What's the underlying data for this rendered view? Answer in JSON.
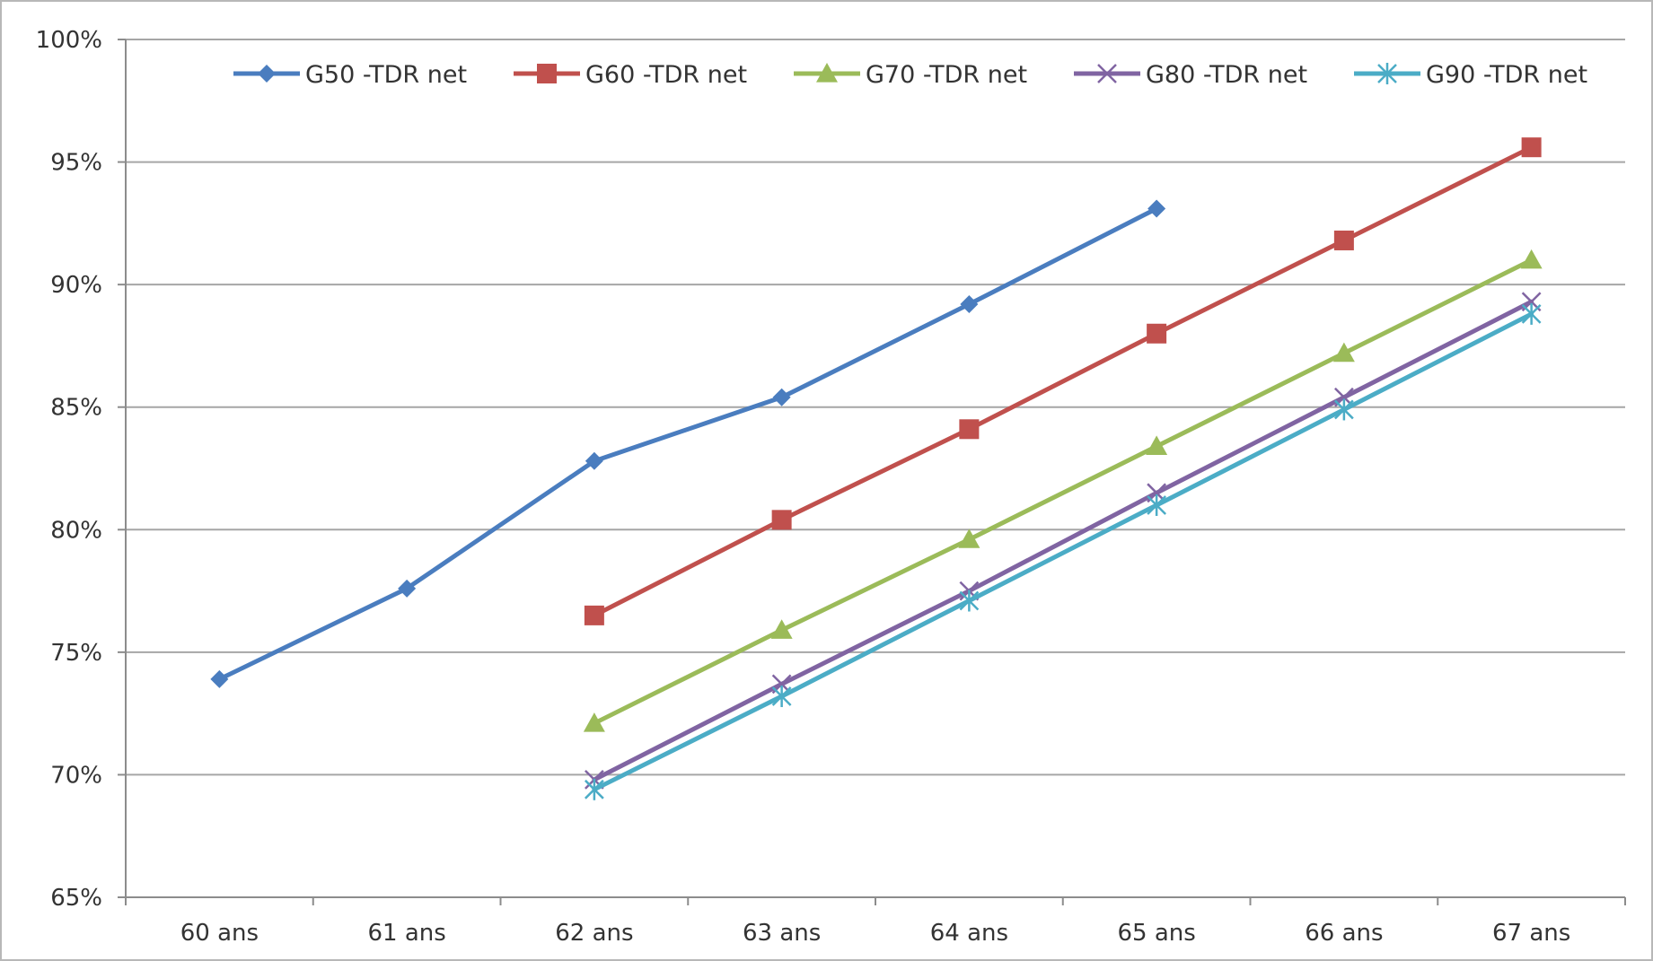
{
  "chart_data": {
    "type": "line",
    "categories": [
      "60 ans",
      "61 ans",
      "62 ans",
      "63 ans",
      "64 ans",
      "65 ans",
      "66 ans",
      "67 ans"
    ],
    "y_ticks": [
      "65%",
      "70%",
      "75%",
      "80%",
      "85%",
      "90%",
      "95%",
      "100%"
    ],
    "ylim": [
      65,
      100
    ],
    "grid": true,
    "legend_position": "top",
    "series": [
      {
        "name": "G50 -TDR net",
        "color": "#4a7dbf",
        "marker": "diamond",
        "values": [
          73.9,
          77.6,
          82.8,
          85.4,
          89.2,
          93.1,
          null,
          null
        ]
      },
      {
        "name": "G60 -TDR net",
        "color": "#c0504d",
        "marker": "square",
        "values": [
          null,
          null,
          76.5,
          80.4,
          84.1,
          88.0,
          91.8,
          95.6
        ]
      },
      {
        "name": "G70 -TDR net",
        "color": "#9bbb59",
        "marker": "triangle",
        "values": [
          null,
          null,
          72.1,
          75.9,
          79.6,
          83.4,
          87.2,
          91.0
        ]
      },
      {
        "name": "G80 -TDR net",
        "color": "#8064a2",
        "marker": "x",
        "values": [
          null,
          null,
          69.8,
          73.7,
          77.5,
          81.5,
          85.4,
          89.3
        ]
      },
      {
        "name": "G90 -TDR net",
        "color": "#4bacc6",
        "marker": "star",
        "values": [
          null,
          null,
          69.4,
          73.2,
          77.1,
          81.0,
          84.9,
          88.8
        ]
      }
    ]
  }
}
